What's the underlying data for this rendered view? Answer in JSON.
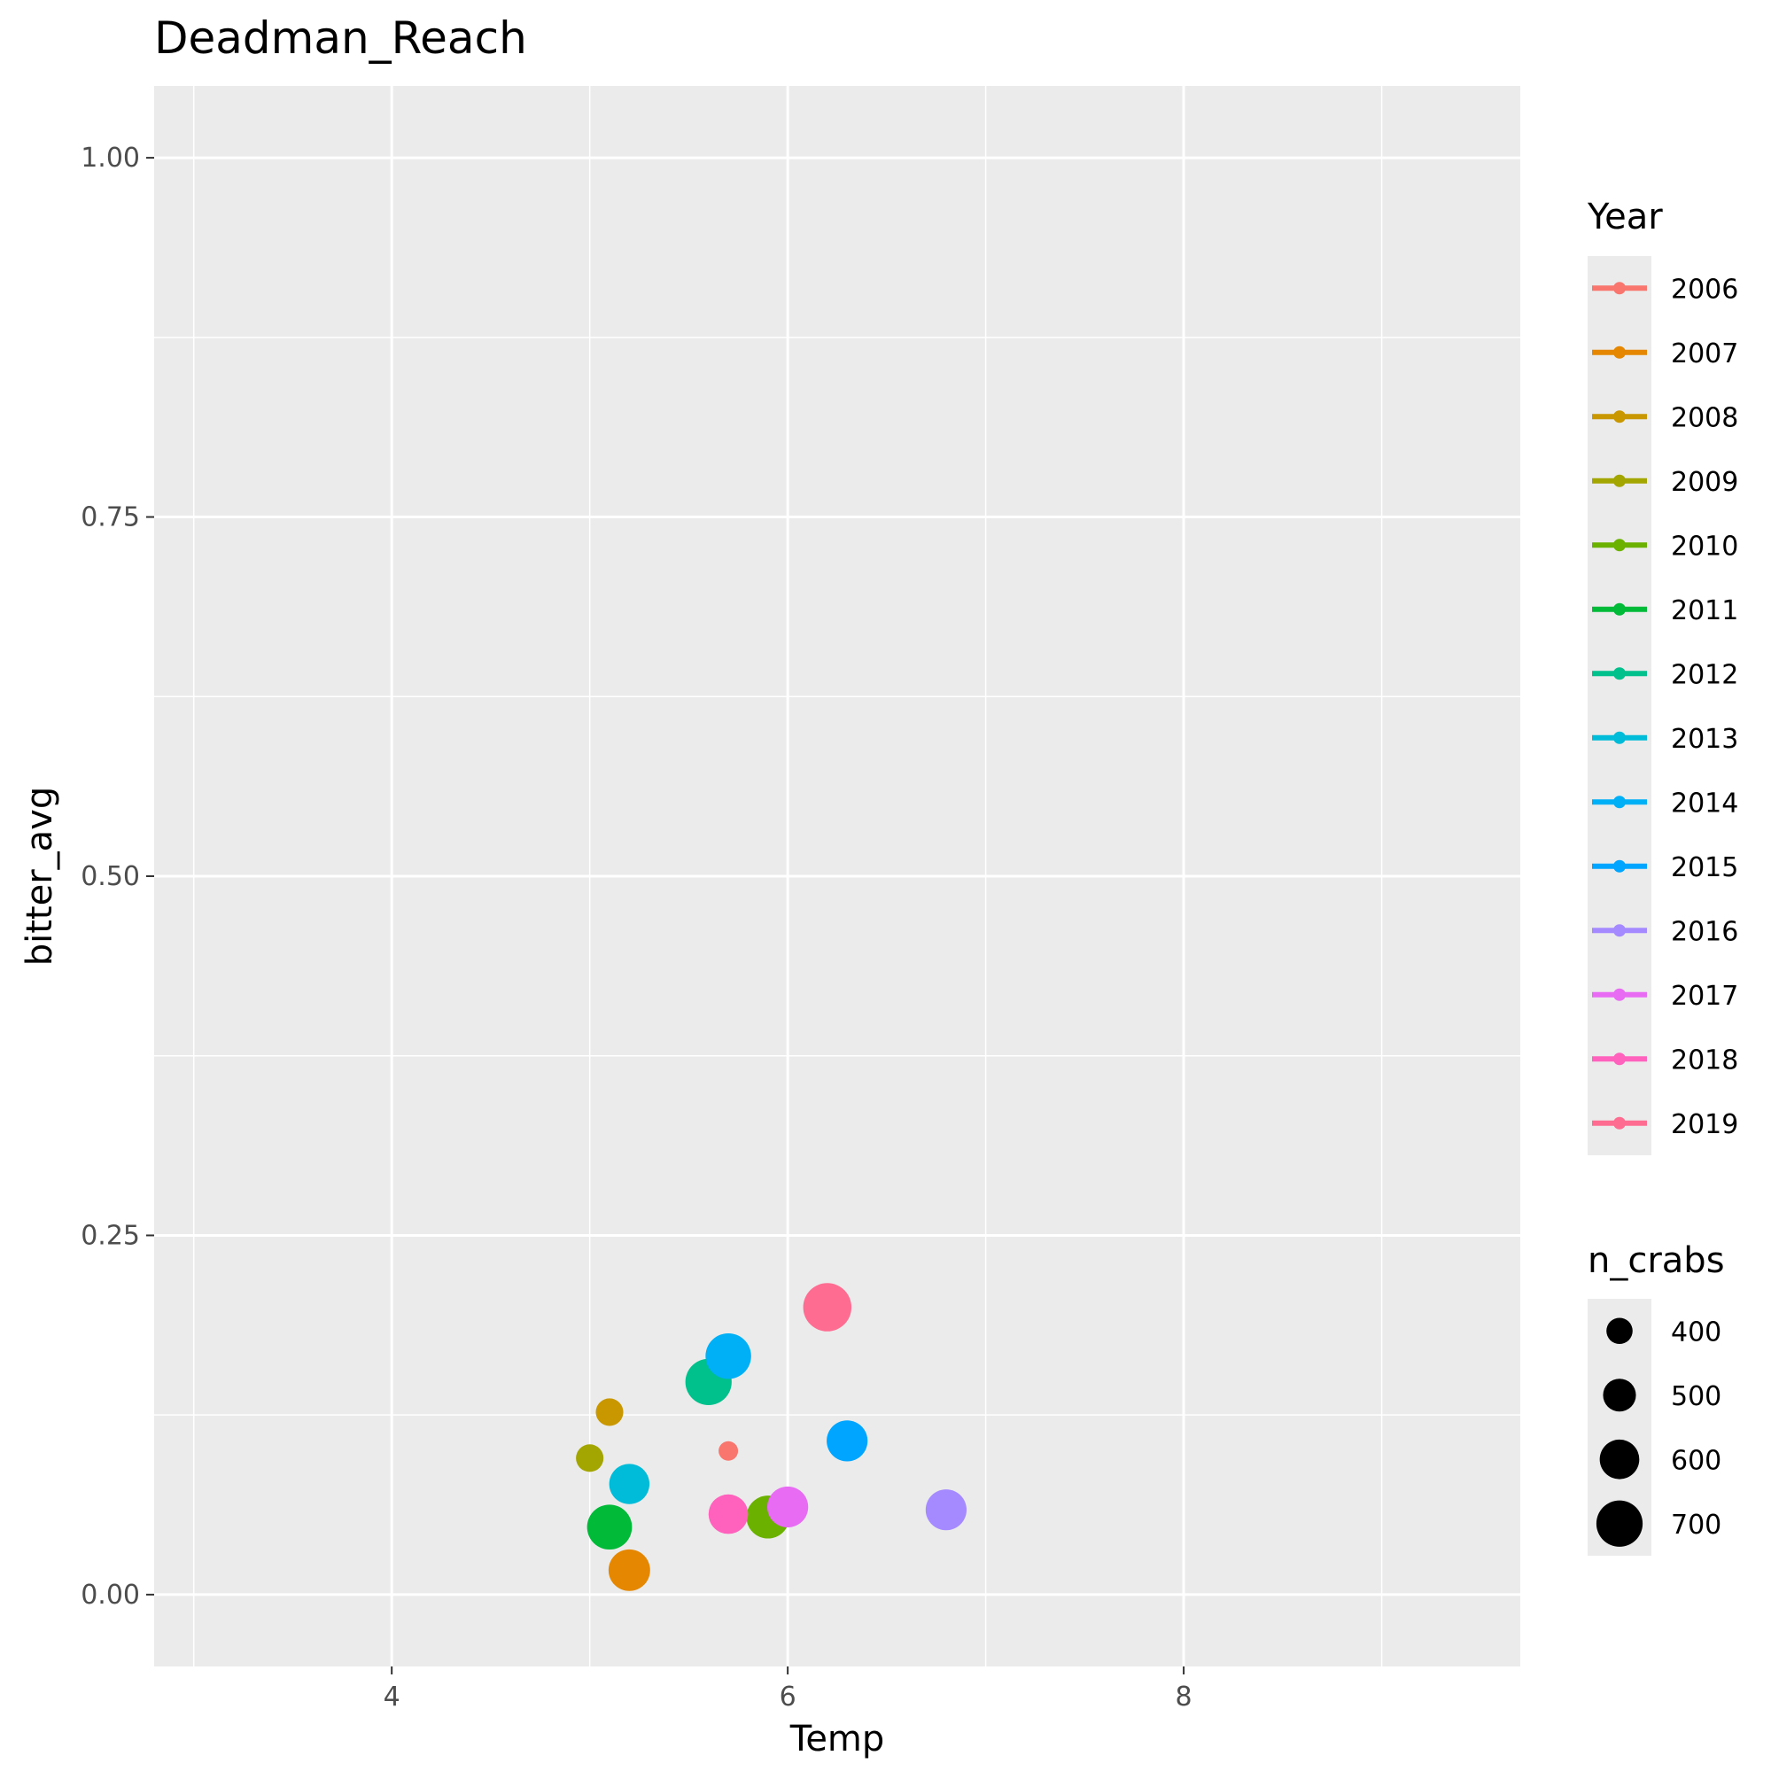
{
  "chart_data": {
    "type": "scatter",
    "title": "Deadman_Reach",
    "xlabel": "Temp",
    "ylabel": "bitter_avg",
    "xlim": [
      2.8,
      9.7
    ],
    "ylim": [
      -0.05,
      1.05
    ],
    "x_ticks": [
      4,
      6,
      8
    ],
    "x_tick_labels": [
      "4",
      "6",
      "8"
    ],
    "y_ticks": [
      0,
      0.25,
      0.5,
      0.75,
      1.0
    ],
    "y_tick_labels": [
      "0.00",
      "0.25",
      "0.50",
      "0.75",
      "1.00"
    ],
    "grid": true,
    "panel_background": "#EBEBEB",
    "legend_position": "right",
    "color_legend": {
      "title": "Year",
      "entries": [
        {
          "label": "2006",
          "color": "#F8766D"
        },
        {
          "label": "2007",
          "color": "#E58700"
        },
        {
          "label": "2008",
          "color": "#C99800"
        },
        {
          "label": "2009",
          "color": "#A3A500"
        },
        {
          "label": "2010",
          "color": "#6BB100"
        },
        {
          "label": "2011",
          "color": "#00BA38"
        },
        {
          "label": "2012",
          "color": "#00C08B"
        },
        {
          "label": "2013",
          "color": "#00BCD8"
        },
        {
          "label": "2014",
          "color": "#00B0F6"
        },
        {
          "label": "2015",
          "color": "#00A5FF"
        },
        {
          "label": "2016",
          "color": "#A58AFF"
        },
        {
          "label": "2017",
          "color": "#E76BF3"
        },
        {
          "label": "2018",
          "color": "#FF62BC"
        },
        {
          "label": "2019",
          "color": "#FF6C91"
        }
      ]
    },
    "size_legend": {
      "title": "n_crabs",
      "entries": [
        {
          "label": "400",
          "value": 400
        },
        {
          "label": "500",
          "value": 500
        },
        {
          "label": "600",
          "value": 600
        },
        {
          "label": "700",
          "value": 700
        }
      ],
      "range": [
        300,
        750
      ]
    },
    "points": [
      {
        "year": "2006",
        "x": 5.7,
        "y": 0.1,
        "n_crabs": 300
      },
      {
        "year": "2007",
        "x": 5.2,
        "y": 0.017,
        "n_crabs": 630
      },
      {
        "year": "2008",
        "x": 5.1,
        "y": 0.127,
        "n_crabs": 420
      },
      {
        "year": "2009",
        "x": 5.0,
        "y": 0.095,
        "n_crabs": 420
      },
      {
        "year": "2010",
        "x": 5.9,
        "y": 0.054,
        "n_crabs": 650
      },
      {
        "year": "2011",
        "x": 5.1,
        "y": 0.047,
        "n_crabs": 680
      },
      {
        "year": "2012",
        "x": 5.6,
        "y": 0.148,
        "n_crabs": 700
      },
      {
        "year": "2013",
        "x": 5.2,
        "y": 0.077,
        "n_crabs": 610
      },
      {
        "year": "2014",
        "x": 5.7,
        "y": 0.166,
        "n_crabs": 690
      },
      {
        "year": "2015",
        "x": 6.3,
        "y": 0.107,
        "n_crabs": 620
      },
      {
        "year": "2016",
        "x": 6.8,
        "y": 0.059,
        "n_crabs": 620
      },
      {
        "year": "2017",
        "x": 6.0,
        "y": 0.061,
        "n_crabs": 620
      },
      {
        "year": "2018",
        "x": 5.7,
        "y": 0.056,
        "n_crabs": 600
      },
      {
        "year": "2019",
        "x": 6.2,
        "y": 0.2,
        "n_crabs": 730
      }
    ]
  }
}
